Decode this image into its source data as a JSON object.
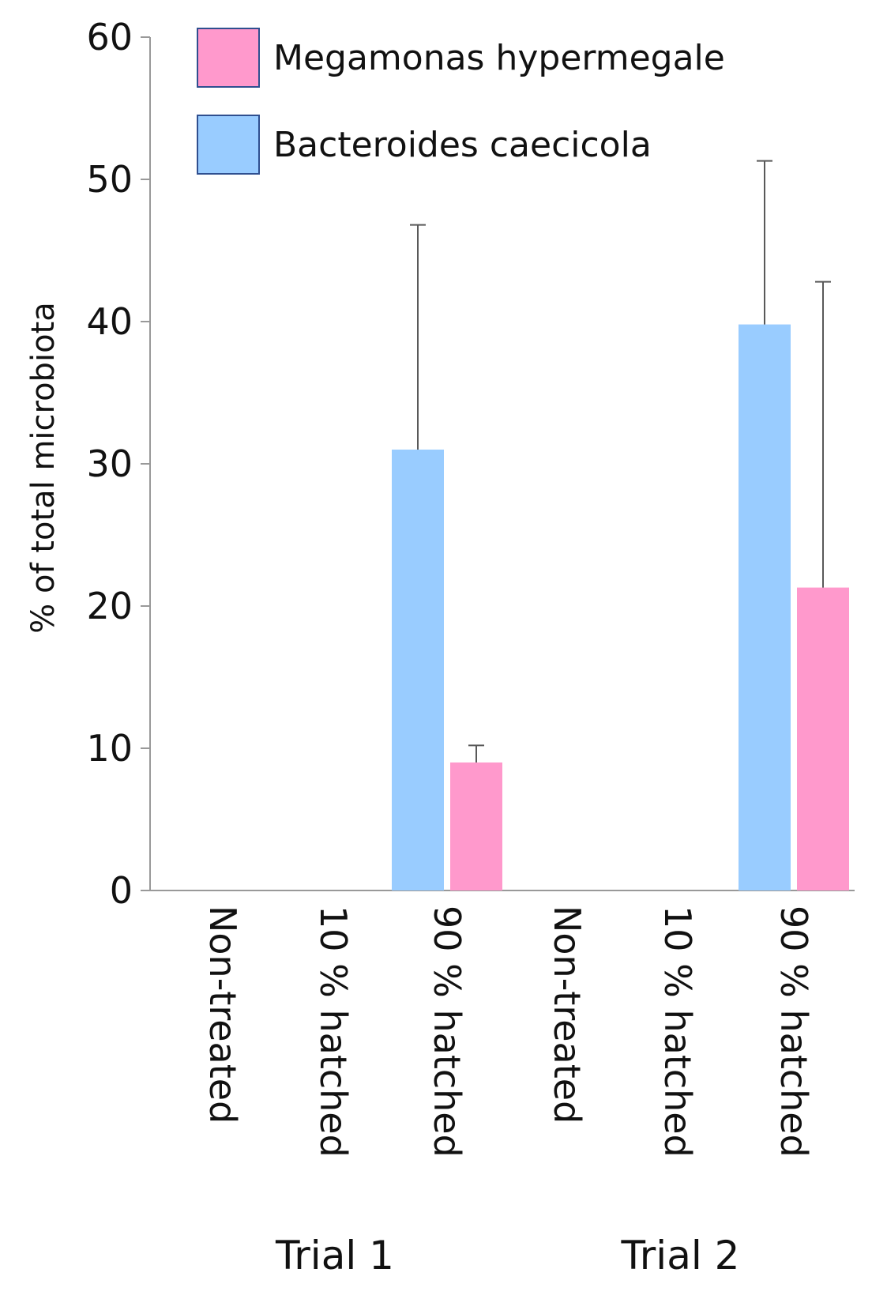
{
  "chart_data": {
    "type": "bar",
    "title": "",
    "xlabel": "",
    "ylabel": "% of total microbiota",
    "ylim": [
      0,
      60
    ],
    "yticks": [
      0,
      10,
      20,
      30,
      40,
      50,
      60
    ],
    "ytick_labels": [
      "0",
      "10",
      "20",
      "30",
      "40",
      "50",
      "60"
    ],
    "categories": [
      "Non-treated",
      "10 % hatched",
      "90 % hatched",
      "Non-treated",
      "10 % hatched",
      "90 % hatched"
    ],
    "groups": [
      {
        "label": "Trial 1",
        "categories": [
          0,
          1,
          2
        ]
      },
      {
        "label": "Trial 2",
        "categories": [
          3,
          4,
          5
        ]
      }
    ],
    "series": [
      {
        "name": "Bacteroides caecicola",
        "color": "#99CCFF",
        "values": [
          0,
          0,
          31.0,
          0,
          0,
          39.8
        ],
        "error_upper": [
          null,
          null,
          46.8,
          null,
          null,
          51.3
        ]
      },
      {
        "name": "Megamonas hypermegale",
        "color": "#FF99CC",
        "values": [
          0,
          0,
          9.0,
          0,
          0,
          21.3
        ],
        "error_upper": [
          null,
          null,
          10.2,
          null,
          null,
          42.8
        ]
      }
    ],
    "legend": {
      "position": "top-right",
      "entries": [
        {
          "name": "Megamonas hypermegale",
          "color": "#FF99CC"
        },
        {
          "name": "Bacteroides caecicola",
          "color": "#99CCFF"
        }
      ]
    },
    "grid": false,
    "axis_color": "#999999",
    "errorbar_color": "#595959"
  }
}
